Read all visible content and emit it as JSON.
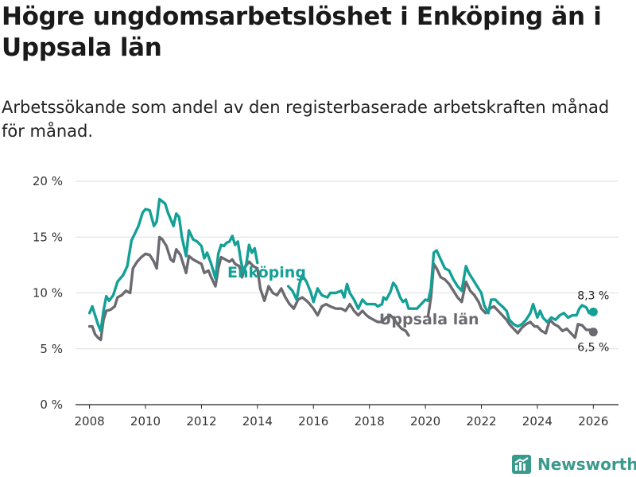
{
  "header": {
    "title": "Högre ungdomsarbetslöshet i Enköping än i Uppsala län",
    "subtitle": "Arbetssökande som andel av den registerbaserade arbetskraften månad för månad."
  },
  "brand": {
    "name": "Newsworthy",
    "color": "#3a9a8c"
  },
  "chart_data": {
    "type": "line",
    "title": "Högre ungdomsarbetslöshet i Enköping än i Uppsala län",
    "ylim": [
      0,
      20
    ],
    "xlim": [
      2007.5,
      2026.9
    ],
    "y_ticks": [
      {
        "v": 0,
        "label": "0 %"
      },
      {
        "v": 5,
        "label": "5 %"
      },
      {
        "v": 10,
        "label": "10 %"
      },
      {
        "v": 15,
        "label": "15 %"
      },
      {
        "v": 20,
        "label": "20 %"
      }
    ],
    "x_ticks": [
      {
        "v": 2008,
        "label": "2008"
      },
      {
        "v": 2010,
        "label": "2010"
      },
      {
        "v": 2012,
        "label": "2012"
      },
      {
        "v": 2014,
        "label": "2014"
      },
      {
        "v": 2016,
        "label": "2016"
      },
      {
        "v": 2018,
        "label": "2018"
      },
      {
        "v": 2020,
        "label": "2020"
      },
      {
        "v": 2022,
        "label": "2022"
      },
      {
        "v": 2024,
        "label": "2024"
      },
      {
        "v": 2026,
        "label": "2026"
      }
    ],
    "series": [
      {
        "name": "Enköping",
        "color": "#14a096",
        "end_label": "8,3 %",
        "points": [
          [
            2008.0,
            8.2
          ],
          [
            2008.1,
            8.8
          ],
          [
            2008.2,
            8.0
          ],
          [
            2008.3,
            7.2
          ],
          [
            2008.4,
            6.6
          ],
          [
            2008.5,
            8.4
          ],
          [
            2008.6,
            9.7
          ],
          [
            2008.7,
            9.3
          ],
          [
            2008.85,
            9.8
          ],
          [
            2009.0,
            11.0
          ],
          [
            2009.2,
            11.6
          ],
          [
            2009.35,
            12.4
          ],
          [
            2009.5,
            14.7
          ],
          [
            2009.6,
            15.2
          ],
          [
            2009.75,
            16.0
          ],
          [
            2009.9,
            17.2
          ],
          [
            2010.0,
            17.5
          ],
          [
            2010.15,
            17.4
          ],
          [
            2010.3,
            16.0
          ],
          [
            2010.4,
            16.4
          ],
          [
            2010.5,
            18.4
          ],
          [
            2010.6,
            18.2
          ],
          [
            2010.7,
            18.0
          ],
          [
            2010.8,
            17.2
          ],
          [
            2010.9,
            16.6
          ],
          [
            2011.0,
            16.0
          ],
          [
            2011.1,
            17.1
          ],
          [
            2011.2,
            16.8
          ],
          [
            2011.3,
            15.0
          ],
          [
            2011.45,
            13.3
          ],
          [
            2011.55,
            15.6
          ],
          [
            2011.7,
            14.8
          ],
          [
            2011.85,
            14.6
          ],
          [
            2012.0,
            14.2
          ],
          [
            2012.1,
            13.1
          ],
          [
            2012.2,
            13.6
          ],
          [
            2012.35,
            12.6
          ],
          [
            2012.5,
            11.3
          ],
          [
            2012.6,
            13.5
          ],
          [
            2012.7,
            14.3
          ],
          [
            2012.8,
            14.2
          ],
          [
            2012.9,
            14.5
          ],
          [
            2013.0,
            14.6
          ],
          [
            2013.1,
            15.1
          ],
          [
            2013.2,
            14.3
          ],
          [
            2013.3,
            14.6
          ],
          [
            2013.4,
            13.0
          ],
          [
            2013.5,
            11.8
          ],
          [
            2013.6,
            12.6
          ],
          [
            2013.7,
            14.3
          ],
          [
            2013.8,
            13.6
          ],
          [
            2013.9,
            14.0
          ],
          [
            2014.0,
            12.7
          ],
          [
            2015.1,
            10.6
          ],
          [
            2015.25,
            10.2
          ],
          [
            2015.4,
            9.4
          ],
          [
            2015.5,
            10.8
          ],
          [
            2015.6,
            11.6
          ],
          [
            2015.75,
            11.0
          ],
          [
            2015.9,
            10.1
          ],
          [
            2016.0,
            9.2
          ],
          [
            2016.15,
            10.4
          ],
          [
            2016.3,
            9.8
          ],
          [
            2016.5,
            9.6
          ],
          [
            2016.6,
            10.0
          ],
          [
            2016.8,
            10.0
          ],
          [
            2017.0,
            10.2
          ],
          [
            2017.1,
            9.6
          ],
          [
            2017.2,
            10.8
          ],
          [
            2017.3,
            10.0
          ],
          [
            2017.45,
            9.4
          ],
          [
            2017.6,
            8.6
          ],
          [
            2017.75,
            9.4
          ],
          [
            2017.9,
            9.0
          ],
          [
            2018.0,
            9.0
          ],
          [
            2018.2,
            9.0
          ],
          [
            2018.3,
            8.8
          ],
          [
            2018.45,
            9.0
          ],
          [
            2018.5,
            9.6
          ],
          [
            2018.6,
            9.4
          ],
          [
            2018.75,
            10.1
          ],
          [
            2018.85,
            10.9
          ],
          [
            2018.95,
            10.6
          ],
          [
            2019.1,
            9.6
          ],
          [
            2019.2,
            9.2
          ],
          [
            2019.3,
            9.4
          ],
          [
            2019.4,
            8.6
          ],
          [
            2019.7,
            8.6
          ],
          [
            2019.85,
            9.0
          ],
          [
            2020.0,
            9.4
          ],
          [
            2020.1,
            9.3
          ],
          [
            2020.2,
            10.4
          ],
          [
            2020.3,
            13.6
          ],
          [
            2020.4,
            13.8
          ],
          [
            2020.55,
            13.0
          ],
          [
            2020.7,
            12.2
          ],
          [
            2020.85,
            12.0
          ],
          [
            2021.0,
            11.2
          ],
          [
            2021.15,
            10.6
          ],
          [
            2021.3,
            10.2
          ],
          [
            2021.45,
            12.4
          ],
          [
            2021.55,
            11.8
          ],
          [
            2021.7,
            11.2
          ],
          [
            2021.85,
            10.6
          ],
          [
            2022.0,
            10.0
          ],
          [
            2022.1,
            8.9
          ],
          [
            2022.25,
            8.2
          ],
          [
            2022.35,
            9.4
          ],
          [
            2022.5,
            9.4
          ],
          [
            2022.65,
            9.0
          ],
          [
            2022.75,
            8.8
          ],
          [
            2022.9,
            8.4
          ],
          [
            2023.0,
            7.6
          ],
          [
            2023.15,
            7.2
          ],
          [
            2023.3,
            7.0
          ],
          [
            2023.45,
            7.2
          ],
          [
            2023.6,
            7.6
          ],
          [
            2023.75,
            8.2
          ],
          [
            2023.85,
            9.0
          ],
          [
            2024.0,
            7.8
          ],
          [
            2024.1,
            8.4
          ],
          [
            2024.2,
            7.8
          ],
          [
            2024.35,
            7.4
          ],
          [
            2024.5,
            7.8
          ],
          [
            2024.65,
            7.6
          ],
          [
            2024.8,
            8.0
          ],
          [
            2024.95,
            8.2
          ],
          [
            2025.1,
            7.8
          ],
          [
            2025.25,
            8.0
          ],
          [
            2025.4,
            8.0
          ],
          [
            2025.5,
            8.6
          ],
          [
            2025.6,
            8.9
          ],
          [
            2025.75,
            8.7
          ],
          [
            2025.85,
            8.2
          ],
          [
            2026.0,
            8.3
          ]
        ]
      },
      {
        "name": "Uppsala län",
        "color": "#6c6a70",
        "end_label": "6,5 %",
        "points": [
          [
            2008.0,
            7.0
          ],
          [
            2008.1,
            7.0
          ],
          [
            2008.2,
            6.3
          ],
          [
            2008.3,
            6.0
          ],
          [
            2008.4,
            5.8
          ],
          [
            2008.5,
            7.6
          ],
          [
            2008.6,
            8.4
          ],
          [
            2008.75,
            8.5
          ],
          [
            2008.9,
            8.8
          ],
          [
            2009.0,
            9.6
          ],
          [
            2009.15,
            9.8
          ],
          [
            2009.3,
            10.2
          ],
          [
            2009.45,
            10.0
          ],
          [
            2009.55,
            12.2
          ],
          [
            2009.7,
            12.8
          ],
          [
            2009.85,
            13.2
          ],
          [
            2010.0,
            13.5
          ],
          [
            2010.15,
            13.4
          ],
          [
            2010.3,
            12.8
          ],
          [
            2010.4,
            12.2
          ],
          [
            2010.5,
            15.0
          ],
          [
            2010.6,
            14.8
          ],
          [
            2010.75,
            14.2
          ],
          [
            2010.9,
            13.0
          ],
          [
            2011.0,
            12.8
          ],
          [
            2011.1,
            13.9
          ],
          [
            2011.25,
            13.4
          ],
          [
            2011.35,
            12.6
          ],
          [
            2011.45,
            11.8
          ],
          [
            2011.55,
            13.3
          ],
          [
            2011.7,
            13.0
          ],
          [
            2011.85,
            12.8
          ],
          [
            2012.0,
            12.6
          ],
          [
            2012.1,
            11.8
          ],
          [
            2012.25,
            12.0
          ],
          [
            2012.35,
            11.4
          ],
          [
            2012.5,
            10.6
          ],
          [
            2012.6,
            12.2
          ],
          [
            2012.7,
            13.2
          ],
          [
            2012.85,
            13.0
          ],
          [
            2013.0,
            12.8
          ],
          [
            2013.1,
            13.0
          ],
          [
            2013.2,
            12.6
          ],
          [
            2013.35,
            12.4
          ],
          [
            2013.45,
            11.4
          ],
          [
            2013.55,
            12.3
          ],
          [
            2013.7,
            12.8
          ],
          [
            2013.85,
            12.4
          ],
          [
            2014.0,
            12.2
          ],
          [
            2014.1,
            10.4
          ],
          [
            2014.25,
            9.3
          ],
          [
            2014.4,
            10.6
          ],
          [
            2014.55,
            10.0
          ],
          [
            2014.7,
            9.8
          ],
          [
            2014.85,
            10.4
          ],
          [
            2015.0,
            9.6
          ],
          [
            2015.15,
            9.0
          ],
          [
            2015.3,
            8.6
          ],
          [
            2015.45,
            9.4
          ],
          [
            2015.6,
            9.6
          ],
          [
            2015.8,
            9.2
          ],
          [
            2016.0,
            8.6
          ],
          [
            2016.15,
            8.0
          ],
          [
            2016.3,
            8.8
          ],
          [
            2016.45,
            9.0
          ],
          [
            2016.6,
            8.8
          ],
          [
            2016.8,
            8.6
          ],
          [
            2017.0,
            8.6
          ],
          [
            2017.15,
            8.4
          ],
          [
            2017.3,
            9.0
          ],
          [
            2017.45,
            8.4
          ],
          [
            2017.6,
            8.0
          ],
          [
            2017.75,
            8.4
          ],
          [
            2017.9,
            8.0
          ],
          [
            2018.0,
            7.8
          ],
          [
            2018.15,
            7.6
          ],
          [
            2018.3,
            7.4
          ],
          [
            2018.45,
            7.4
          ],
          [
            2018.6,
            7.8
          ],
          [
            2018.75,
            8.0
          ],
          [
            2018.9,
            7.6
          ],
          [
            2019.0,
            7.2
          ],
          [
            2019.15,
            6.8
          ],
          [
            2019.3,
            6.6
          ],
          [
            2019.4,
            6.2
          ],
          [
            2020.1,
            8.0
          ],
          [
            2020.2,
            9.6
          ],
          [
            2020.3,
            12.6
          ],
          [
            2020.4,
            12.2
          ],
          [
            2020.55,
            11.4
          ],
          [
            2020.7,
            11.2
          ],
          [
            2020.85,
            10.8
          ],
          [
            2021.0,
            10.2
          ],
          [
            2021.15,
            9.6
          ],
          [
            2021.3,
            9.2
          ],
          [
            2021.45,
            11.0
          ],
          [
            2021.6,
            10.2
          ],
          [
            2021.75,
            9.8
          ],
          [
            2021.9,
            9.2
          ],
          [
            2022.0,
            8.6
          ],
          [
            2022.15,
            8.2
          ],
          [
            2022.3,
            8.6
          ],
          [
            2022.45,
            8.8
          ],
          [
            2022.6,
            8.4
          ],
          [
            2022.75,
            8.0
          ],
          [
            2022.9,
            7.6
          ],
          [
            2023.0,
            7.2
          ],
          [
            2023.15,
            6.8
          ],
          [
            2023.3,
            6.4
          ],
          [
            2023.45,
            6.9
          ],
          [
            2023.6,
            7.2
          ],
          [
            2023.75,
            7.4
          ],
          [
            2023.9,
            7.0
          ],
          [
            2024.0,
            7.0
          ],
          [
            2024.15,
            6.6
          ],
          [
            2024.3,
            6.4
          ],
          [
            2024.45,
            7.6
          ],
          [
            2024.6,
            7.2
          ],
          [
            2024.75,
            7.0
          ],
          [
            2024.9,
            6.6
          ],
          [
            2025.05,
            6.8
          ],
          [
            2025.2,
            6.4
          ],
          [
            2025.35,
            6.0
          ],
          [
            2025.45,
            7.2
          ],
          [
            2025.6,
            7.1
          ],
          [
            2025.75,
            6.7
          ],
          [
            2025.9,
            6.7
          ],
          [
            2026.0,
            6.5
          ]
        ]
      }
    ]
  }
}
